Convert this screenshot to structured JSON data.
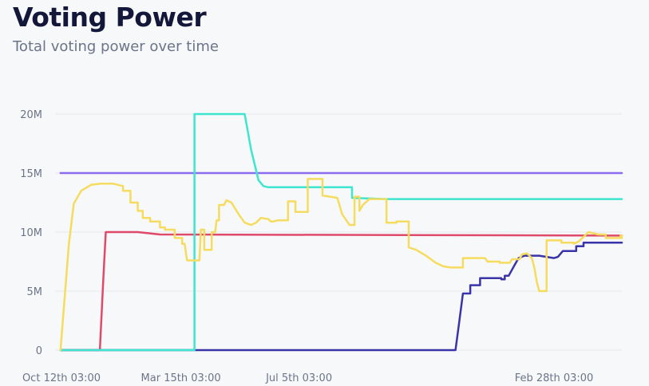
{
  "header": {
    "title": "Voting Power",
    "subtitle": "Total voting power over time"
  },
  "chart_data": {
    "type": "line",
    "title": "Voting Power",
    "subtitle": "Total voting power over time",
    "xlabel": "",
    "ylabel": "",
    "x_ticks": [
      "Oct 12th 03:00",
      "Mar 15th 03:00",
      "Jul 5th 03:00",
      "Feb 28th 03:00"
    ],
    "y_ticks": [
      "0",
      "5M",
      "10M",
      "15M",
      "20M"
    ],
    "y_tick_values": [
      0,
      5000000,
      10000000,
      15000000,
      20000000
    ],
    "ylim": [
      0,
      20000000
    ],
    "grid": true,
    "legend": "none",
    "x_tick_positions": [
      0,
      0.2425,
      0.4823,
      1.0
    ],
    "series": [
      {
        "color": "#8b6cf0",
        "points": [
          [
            -0.002,
            15000000
          ],
          [
            1.272,
            15000000
          ]
        ]
      },
      {
        "color": "#e04a6a",
        "points": [
          [
            -0.002,
            0
          ],
          [
            0.078,
            0
          ],
          [
            0.085,
            6000000
          ],
          [
            0.09,
            10000000
          ],
          [
            0.155,
            10000000
          ],
          [
            0.2,
            9800000
          ],
          [
            1.272,
            9700000
          ]
        ]
      },
      {
        "color": "#3a34a8",
        "points": [
          [
            -0.002,
            0
          ],
          [
            0.8,
            0
          ],
          [
            0.808,
            2500000
          ],
          [
            0.815,
            4800000
          ],
          [
            0.83,
            4800000
          ],
          [
            0.83,
            5500000
          ],
          [
            0.85,
            5500000
          ],
          [
            0.85,
            6100000
          ],
          [
            0.893,
            6100000
          ],
          [
            0.893,
            6000000
          ],
          [
            0.9,
            6000000
          ],
          [
            0.9,
            6300000
          ],
          [
            0.908,
            6300000
          ],
          [
            0.92,
            7200000
          ],
          [
            0.928,
            7800000
          ],
          [
            0.94,
            8000000
          ],
          [
            0.97,
            8000000
          ],
          [
            1.0,
            7800000
          ],
          [
            1.008,
            7900000
          ],
          [
            1.018,
            8400000
          ],
          [
            1.045,
            8400000
          ],
          [
            1.045,
            8800000
          ],
          [
            1.06,
            8800000
          ],
          [
            1.06,
            9100000
          ],
          [
            1.272,
            9100000
          ]
        ]
      },
      {
        "color": "#3ee5cf",
        "points": [
          [
            -0.002,
            0
          ],
          [
            0.27,
            0
          ],
          [
            0.27,
            20000000
          ],
          [
            0.372,
            20000000
          ],
          [
            0.385,
            17000000
          ],
          [
            0.4,
            14400000
          ],
          [
            0.41,
            13900000
          ],
          [
            0.42,
            13800000
          ],
          [
            0.5,
            13800000
          ],
          [
            0.59,
            13800000
          ],
          [
            0.59,
            12900000
          ],
          [
            0.66,
            12800000
          ],
          [
            1.272,
            12800000
          ]
        ]
      },
      {
        "color": "#f5dc5e",
        "points": [
          [
            -0.002,
            0
          ],
          [
            0.015,
            9000000
          ],
          [
            0.025,
            12400000
          ],
          [
            0.04,
            13500000
          ],
          [
            0.06,
            14000000
          ],
          [
            0.08,
            14100000
          ],
          [
            0.105,
            14100000
          ],
          [
            0.125,
            13900000
          ],
          [
            0.125,
            13500000
          ],
          [
            0.14,
            13500000
          ],
          [
            0.14,
            12500000
          ],
          [
            0.155,
            12500000
          ],
          [
            0.155,
            11800000
          ],
          [
            0.165,
            11800000
          ],
          [
            0.165,
            11200000
          ],
          [
            0.18,
            11200000
          ],
          [
            0.18,
            10900000
          ],
          [
            0.2,
            10900000
          ],
          [
            0.2,
            10400000
          ],
          [
            0.21,
            10400000
          ],
          [
            0.21,
            10200000
          ],
          [
            0.23,
            10200000
          ],
          [
            0.23,
            9500000
          ],
          [
            0.245,
            9500000
          ],
          [
            0.245,
            9000000
          ],
          [
            0.25,
            9000000
          ],
          [
            0.255,
            7600000
          ],
          [
            0.28,
            7600000
          ],
          [
            0.283,
            10200000
          ],
          [
            0.29,
            10200000
          ],
          [
            0.29,
            8500000
          ],
          [
            0.305,
            8500000
          ],
          [
            0.305,
            10000000
          ],
          [
            0.312,
            10000000
          ],
          [
            0.315,
            11000000
          ],
          [
            0.32,
            11000000
          ],
          [
            0.32,
            12300000
          ],
          [
            0.33,
            12300000
          ],
          [
            0.335,
            12700000
          ],
          [
            0.345,
            12500000
          ],
          [
            0.36,
            11500000
          ],
          [
            0.372,
            10800000
          ],
          [
            0.385,
            10600000
          ],
          [
            0.395,
            10800000
          ],
          [
            0.405,
            11200000
          ],
          [
            0.42,
            11100000
          ],
          [
            0.425,
            10900000
          ],
          [
            0.43,
            10900000
          ],
          [
            0.44,
            11000000
          ],
          [
            0.46,
            11000000
          ],
          [
            0.46,
            12600000
          ],
          [
            0.475,
            12600000
          ],
          [
            0.475,
            11700000
          ],
          [
            0.5,
            11700000
          ],
          [
            0.5,
            14500000
          ],
          [
            0.53,
            14500000
          ],
          [
            0.53,
            13100000
          ],
          [
            0.545,
            13000000
          ],
          [
            0.56,
            12900000
          ],
          [
            0.57,
            11500000
          ],
          [
            0.585,
            10600000
          ],
          [
            0.595,
            10600000
          ],
          [
            0.595,
            13000000
          ],
          [
            0.605,
            13000000
          ],
          [
            0.605,
            11800000
          ],
          [
            0.612,
            12300000
          ],
          [
            0.625,
            12800000
          ],
          [
            0.66,
            12800000
          ],
          [
            0.66,
            10800000
          ],
          [
            0.68,
            10800000
          ],
          [
            0.68,
            10900000
          ],
          [
            0.705,
            10900000
          ],
          [
            0.705,
            8700000
          ],
          [
            0.72,
            8500000
          ],
          [
            0.74,
            8000000
          ],
          [
            0.76,
            7400000
          ],
          [
            0.775,
            7100000
          ],
          [
            0.79,
            7000000
          ],
          [
            0.815,
            7000000
          ],
          [
            0.815,
            7800000
          ],
          [
            0.86,
            7800000
          ],
          [
            0.865,
            7500000
          ],
          [
            0.89,
            7500000
          ],
          [
            0.89,
            7400000
          ],
          [
            0.91,
            7400000
          ],
          [
            0.915,
            7700000
          ],
          [
            0.93,
            7700000
          ],
          [
            0.935,
            8100000
          ],
          [
            0.945,
            8200000
          ],
          [
            0.955,
            7800000
          ],
          [
            0.96,
            7000000
          ],
          [
            0.965,
            5800000
          ],
          [
            0.97,
            5000000
          ],
          [
            0.98,
            5000000
          ],
          [
            0.985,
            5000000
          ],
          [
            0.985,
            9300000
          ],
          [
            1.015,
            9300000
          ],
          [
            1.015,
            9100000
          ],
          [
            1.04,
            9100000
          ],
          [
            1.04,
            9000000
          ],
          [
            1.05,
            9200000
          ],
          [
            1.07,
            10000000
          ],
          [
            1.09,
            9800000
          ],
          [
            1.105,
            9800000
          ],
          [
            1.105,
            9500000
          ],
          [
            1.135,
            9500000
          ],
          [
            1.135,
            9700000
          ],
          [
            1.145,
            9700000
          ],
          [
            1.145,
            9500000
          ],
          [
            1.272,
            9500000
          ]
        ]
      }
    ]
  }
}
